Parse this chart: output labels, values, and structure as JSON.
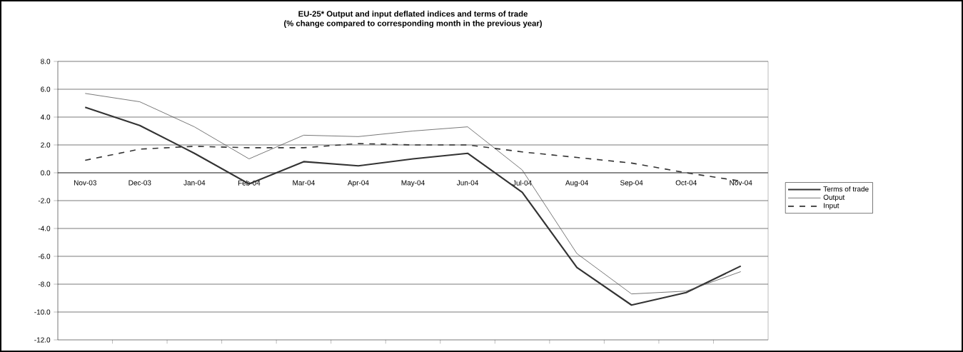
{
  "chart_data": {
    "type": "line",
    "title": "EU-25*  Output and input deflated indices and terms of trade",
    "subtitle": "(% change compared to corresponding month in the previous year)",
    "categories": [
      "Nov-03",
      "Dec-03",
      "Jan-04",
      "Feb-04",
      "Mar-04",
      "Apr-04",
      "May-04",
      "Jun-04",
      "Jul-04",
      "Aug-04",
      "Sep-04",
      "Oct-04",
      "Nov-04"
    ],
    "series": [
      {
        "name": "Terms of trade",
        "color": "#333333",
        "line_style": "solid",
        "values": [
          4.7,
          3.4,
          1.4,
          -0.8,
          0.8,
          0.5,
          1.0,
          1.4,
          -1.4,
          -6.8,
          -9.5,
          -8.6,
          -6.7
        ]
      },
      {
        "name": "Output",
        "color": "#555555",
        "line_style": "solid",
        "values": [
          5.7,
          5.1,
          3.3,
          1.0,
          2.7,
          2.6,
          3.0,
          3.3,
          0.2,
          -5.8,
          -8.7,
          -8.5,
          -7.1
        ]
      },
      {
        "name": "Input",
        "color": "#333333",
        "line_style": "dashed",
        "values": [
          0.9,
          1.7,
          1.9,
          1.8,
          1.8,
          2.1,
          2.0,
          2.0,
          1.5,
          1.1,
          0.7,
          0.0,
          -0.6
        ]
      }
    ],
    "ylim": [
      -12,
      8
    ],
    "yticks": [
      {
        "value": -12,
        "label": "-12.0"
      },
      {
        "value": -10,
        "label": "-10.0"
      },
      {
        "value": -8,
        "label": "-8.0"
      },
      {
        "value": -6,
        "label": "-6.0"
      },
      {
        "value": -4,
        "label": "-4.0"
      },
      {
        "value": -2,
        "label": "-2.0"
      },
      {
        "value": 0,
        "label": "0.0"
      },
      {
        "value": 2,
        "label": "2.0"
      },
      {
        "value": 4,
        "label": "4.0"
      },
      {
        "value": 6,
        "label": "6.0"
      },
      {
        "value": 8,
        "label": "8.0"
      }
    ],
    "grid": "y",
    "legend": "right",
    "marker": "none"
  }
}
